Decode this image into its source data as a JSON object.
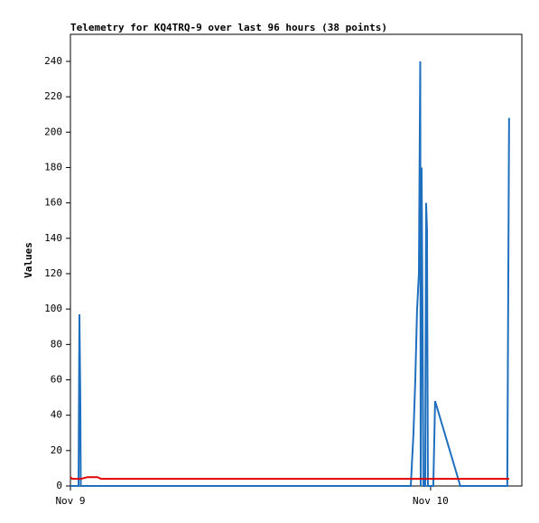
{
  "chart_data": {
    "type": "line",
    "title": "Telemetry for KQ4TRQ-9 over last 96 hours (38 points)",
    "y_label": "Values",
    "x": [
      0.0,
      0.12,
      0.42,
      0.54,
      0.57,
      0.6,
      0.66,
      0.69,
      1.14,
      1.8,
      2.05,
      7.34,
      13.35,
      19.37,
      22.68,
      22.86,
      22.98,
      23.1,
      23.22,
      23.31,
      23.34,
      23.4,
      23.46,
      23.52,
      23.64,
      23.7,
      23.76,
      23.82,
      23.94,
      24.06,
      24.18,
      24.3,
      25.98,
      26.59,
      27.79,
      29.11,
      29.17,
      29.23
    ],
    "series": [
      {
        "color": "#1f6fbf",
        "values": [
          0,
          0,
          0,
          0,
          48,
          97,
          48,
          0,
          0,
          0,
          0,
          0,
          0,
          0,
          0,
          30,
          60,
          100,
          120,
          240,
          0,
          180,
          100,
          0,
          0,
          160,
          145,
          0,
          0,
          0,
          0,
          48,
          0,
          0,
          0,
          0,
          104,
          208
        ]
      },
      {
        "color": "#e00000",
        "values": [
          5,
          4,
          4,
          4,
          4,
          4,
          4,
          4,
          5,
          5,
          4,
          4,
          4,
          4,
          4,
          4,
          4,
          4,
          4,
          4,
          4,
          4,
          4,
          4,
          4,
          4,
          4,
          4,
          4,
          4,
          4,
          4,
          4,
          4,
          4,
          4,
          4,
          4
        ]
      }
    ],
    "xlim": [
      0,
      30.08
    ],
    "xticks": [
      {
        "value": 0,
        "label": "Nov 9"
      },
      {
        "value": 24,
        "label": "Nov 10"
      }
    ],
    "ylim": [
      0,
      255.3
    ],
    "yticks": [
      0,
      20,
      40,
      60,
      80,
      100,
      120,
      140,
      160,
      180,
      200,
      220,
      240
    ],
    "grid": false
  }
}
